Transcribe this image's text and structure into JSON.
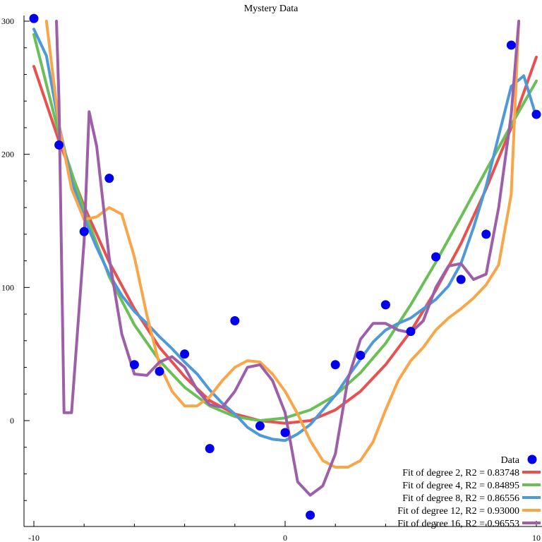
{
  "chart_data": {
    "type": "scatter",
    "title": "Mystery Data",
    "xlabel": "",
    "ylabel": "",
    "xlim": [
      -10,
      10
    ],
    "ylim": [
      -75,
      300
    ],
    "x_ticks": [
      -10,
      0,
      10
    ],
    "y_ticks": [
      0,
      100,
      200,
      300
    ],
    "grid": false,
    "legend_position": "bottom-right",
    "points": {
      "name": "Data",
      "color": "#0000ee",
      "x": [
        -10,
        -9,
        -8,
        -7,
        -6,
        -5,
        -4,
        -3,
        -2,
        -1,
        0,
        1,
        2,
        3,
        4,
        5,
        6,
        7,
        8,
        9,
        10
      ],
      "y": [
        302,
        207,
        142,
        182,
        42,
        37,
        50,
        -21,
        75,
        -4,
        -9,
        -71,
        42,
        49,
        87,
        67,
        123,
        106,
        140,
        282,
        230
      ]
    },
    "fits": [
      {
        "name": "Fit of degree 2, R2 = 0.83748",
        "color": "#e8514f",
        "x": [
          -10,
          -9,
          -8,
          -7,
          -6,
          -5,
          -4,
          -3,
          -2,
          -1,
          0,
          1,
          2,
          3,
          4,
          5,
          6,
          7,
          8,
          9,
          10
        ],
        "y": [
          266,
          210,
          161,
          119,
          84,
          55,
          33,
          15,
          5,
          0,
          -2,
          0,
          8,
          22,
          42,
          67,
          98,
          133,
          174,
          220,
          273
        ]
      },
      {
        "name": "Fit of degree 4, R2 = 0.84895",
        "color": "#6abf56",
        "x": [
          -10,
          -9,
          -8,
          -7,
          -6,
          -5,
          -4,
          -3,
          -2,
          -1,
          0,
          1,
          2,
          3,
          4,
          5,
          6,
          7,
          8,
          9,
          10
        ],
        "y": [
          290,
          215,
          158,
          108,
          72,
          45,
          25,
          11,
          3,
          0,
          2,
          8,
          19,
          36,
          58,
          87,
          119,
          153,
          188,
          222,
          255
        ]
      },
      {
        "name": "Fit of degree 8, R2 = 0.86556",
        "color": "#4e99d7",
        "x": [
          -10,
          -9.5,
          -9,
          -8.5,
          -8,
          -7.5,
          -7,
          -6.5,
          -6,
          -5.5,
          -5,
          -4.5,
          -4,
          -3.5,
          -3,
          -2.5,
          -2,
          -1.5,
          -1,
          -0.5,
          0,
          0.5,
          1,
          1.5,
          2,
          2.5,
          3,
          3.5,
          4,
          4.5,
          5,
          5.5,
          6,
          6.5,
          7,
          7.5,
          8,
          8.5,
          9,
          9.5,
          10
        ],
        "y": [
          294,
          274,
          222,
          180,
          152,
          130,
          110,
          94,
          82,
          73,
          63,
          54,
          44,
          35,
          23,
          13,
          5,
          -5,
          -11,
          -14,
          -15,
          -10,
          -3,
          8,
          19,
          33,
          46,
          59,
          68,
          73,
          77,
          84,
          91,
          101,
          118,
          145,
          176,
          214,
          251,
          259,
          228
        ]
      },
      {
        "name": "Fit of degree 12, R2 = 0.93000",
        "color": "#f8a649",
        "x": [
          -9.5,
          -9,
          -8.5,
          -8,
          -7.5,
          -7,
          -6.5,
          -6,
          -5.5,
          -5,
          -4.5,
          -4,
          -3.5,
          -3,
          -2.5,
          -2,
          -1.5,
          -1,
          -0.5,
          0,
          0.5,
          1,
          1.5,
          2,
          2.5,
          3,
          3.5,
          4,
          4.5,
          5,
          5.5,
          6,
          6.5,
          7,
          7.5,
          8,
          8.5,
          9,
          9.3
        ],
        "y": [
          300,
          222,
          174,
          151,
          153,
          160,
          155,
          123,
          79,
          42,
          22,
          11,
          11,
          18,
          30,
          40,
          45,
          44,
          35,
          22,
          5,
          -15,
          -30,
          -35,
          -35,
          -30,
          -16,
          8,
          30,
          45,
          55,
          68,
          77,
          84,
          92,
          102,
          117,
          170,
          300
        ]
      },
      {
        "name": "Fit of degree 16, R2 = 0.96553",
        "color": "#9c5fa8",
        "x": [
          -9.1,
          -9,
          -8.8,
          -8.5,
          -8,
          -7.8,
          -7.5,
          -7,
          -6.5,
          -6,
          -5.5,
          -5,
          -4.5,
          -4,
          -3.5,
          -3,
          -2.5,
          -2,
          -1.5,
          -1,
          -0.5,
          0,
          0.5,
          1,
          1.5,
          2,
          2.5,
          3,
          3.5,
          4,
          4.5,
          5,
          5.5,
          6,
          6.5,
          7,
          7.5,
          8,
          8.5,
          9,
          9.3
        ],
        "y": [
          300,
          240,
          6,
          6,
          135,
          232,
          206,
          122,
          65,
          35,
          34,
          44,
          48,
          40,
          23,
          12,
          10,
          22,
          40,
          42,
          30,
          6,
          -46,
          -56,
          -49,
          -25,
          31,
          61,
          73,
          73,
          68,
          66,
          75,
          100,
          116,
          118,
          106,
          110,
          160,
          230,
          300
        ]
      }
    ]
  }
}
